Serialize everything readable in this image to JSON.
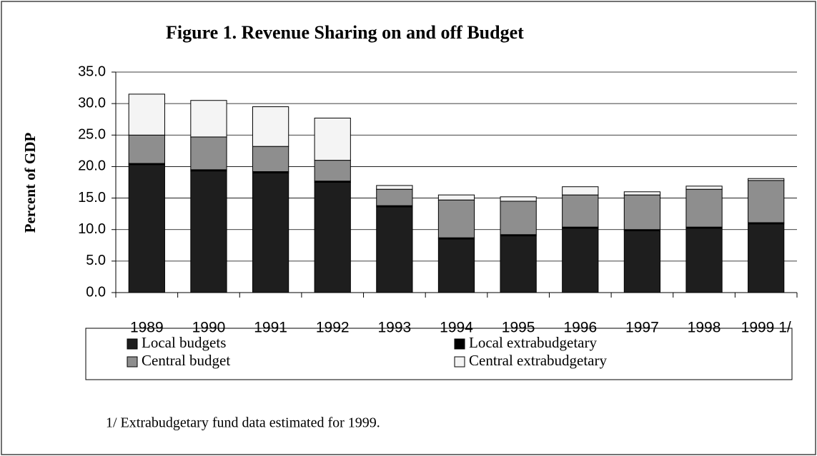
{
  "chart_data": {
    "type": "bar",
    "stacked": true,
    "title": "Figure 1. Revenue Sharing on and off Budget",
    "y_label": "Percent of GDP",
    "note": "1/ Extrabudgetary fund data estimated for 1999.",
    "categories": [
      "1989",
      "1990",
      "1991",
      "1992",
      "1993",
      "1994",
      "1995",
      "1996",
      "1997",
      "1998",
      "1999 1/"
    ],
    "series": [
      {
        "name": "Local budgets",
        "color": "#1e1e1e",
        "values": [
          20.3,
          19.3,
          19.0,
          17.5,
          13.6,
          8.5,
          9.0,
          10.2,
          9.8,
          10.2,
          10.9
        ]
      },
      {
        "name": "Local extrabudgetary",
        "color": "#000000",
        "values": [
          0.2,
          0.2,
          0.2,
          0.2,
          0.2,
          0.2,
          0.2,
          0.2,
          0.2,
          0.2,
          0.2
        ]
      },
      {
        "name": "Central budget",
        "color": "#8e8e8e",
        "values": [
          4.5,
          5.2,
          4.0,
          3.3,
          2.6,
          6.0,
          5.3,
          5.1,
          5.5,
          6.0,
          6.7
        ]
      },
      {
        "name": "Central extrabudgetary",
        "color": "#f4f4f4",
        "values": [
          6.5,
          5.8,
          6.3,
          6.7,
          0.6,
          0.8,
          0.7,
          1.3,
          0.5,
          0.5,
          0.3
        ]
      }
    ],
    "ylim": [
      0,
      35
    ],
    "yticks": [
      {
        "value": 0,
        "label": "0.0"
      },
      {
        "value": 5,
        "label": "5.0"
      },
      {
        "value": 10,
        "label": "10.0"
      },
      {
        "value": 15,
        "label": "15.0"
      },
      {
        "value": 20,
        "label": "20.0"
      },
      {
        "value": 25,
        "label": "25.0"
      },
      {
        "value": 30,
        "label": "30.0"
      },
      {
        "value": 35,
        "label": "35.0"
      }
    ],
    "grid": true
  }
}
